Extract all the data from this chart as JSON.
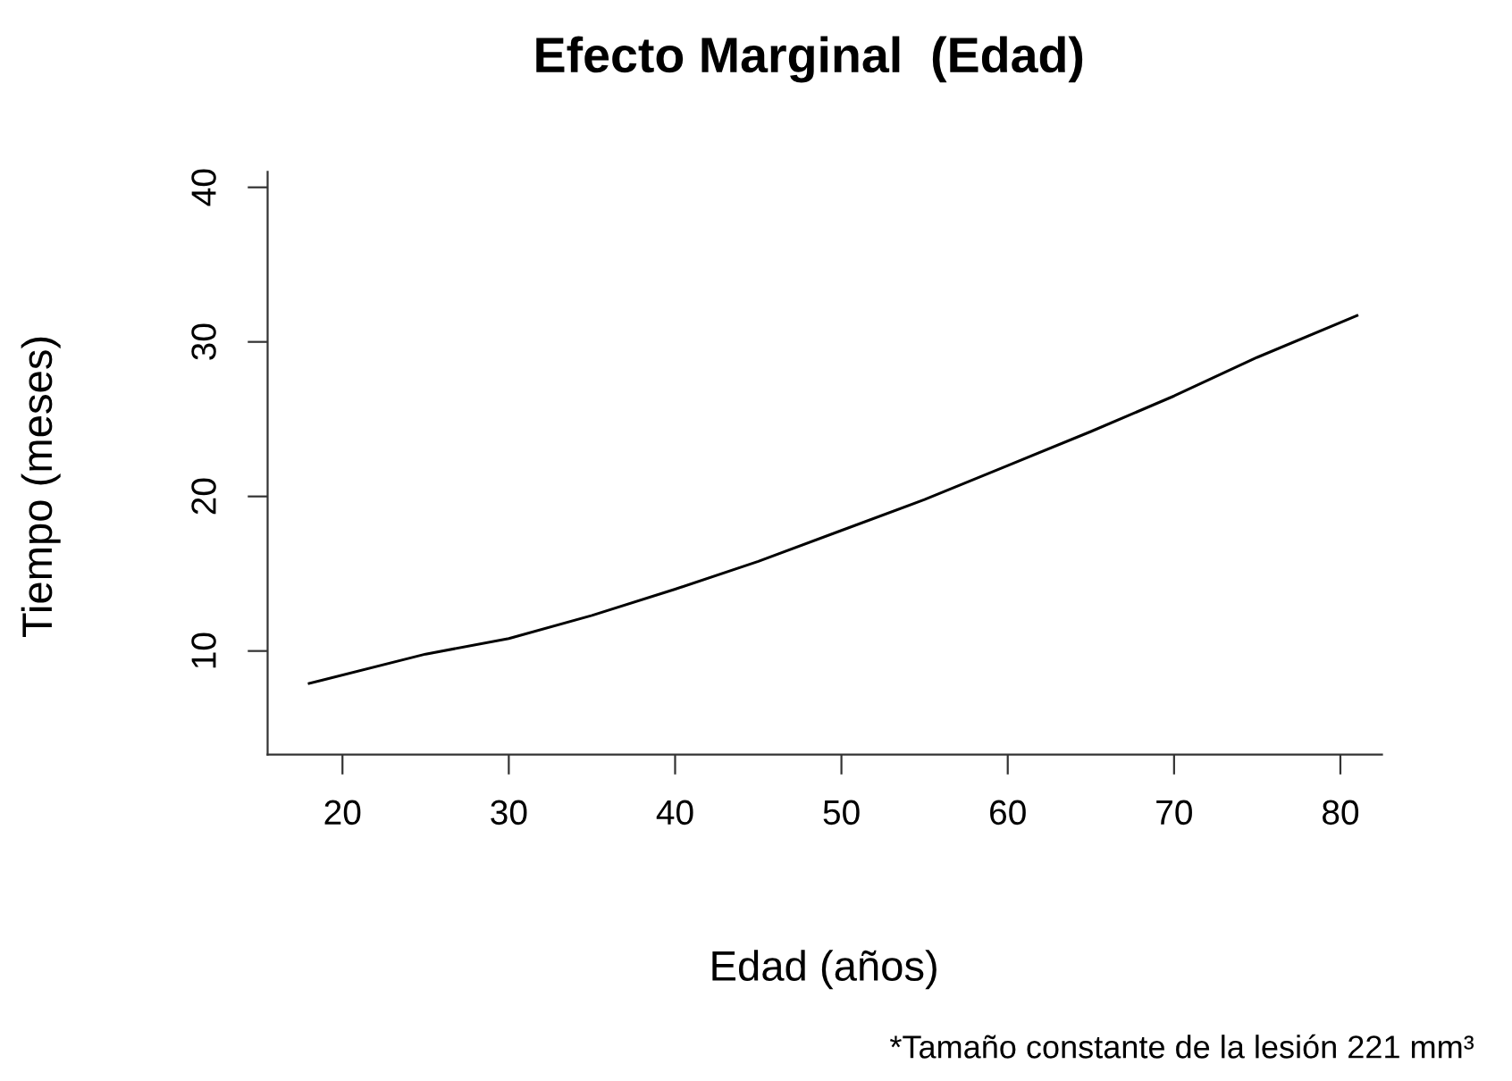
{
  "chart_data": {
    "type": "line",
    "title": "Efecto Marginal  (Edad)",
    "xlabel": "Edad (años)",
    "ylabel": "Tiempo (meses)",
    "annotations": [
      "*Tamaño constante de la lesión 221 mm³"
    ],
    "x": [
      18,
      25,
      30,
      35,
      40,
      45,
      50,
      55,
      60,
      65,
      70,
      75,
      81
    ],
    "series": [
      {
        "color": "#000000",
        "values": [
          7.9,
          9.8,
          10.8,
          12.3,
          14.0,
          15.8,
          17.8,
          19.8,
          22.0,
          24.2,
          26.5,
          29.0,
          31.7
        ]
      }
    ],
    "xlim": [
      15.5,
      82.5
    ],
    "ylim": [
      3.3,
      41
    ],
    "xticks": [
      20,
      30,
      40,
      50,
      60,
      70,
      80
    ],
    "yticks": [
      10,
      20,
      30,
      40
    ],
    "grid": false,
    "legend": false,
    "line_style": "solid",
    "marker": "none"
  }
}
